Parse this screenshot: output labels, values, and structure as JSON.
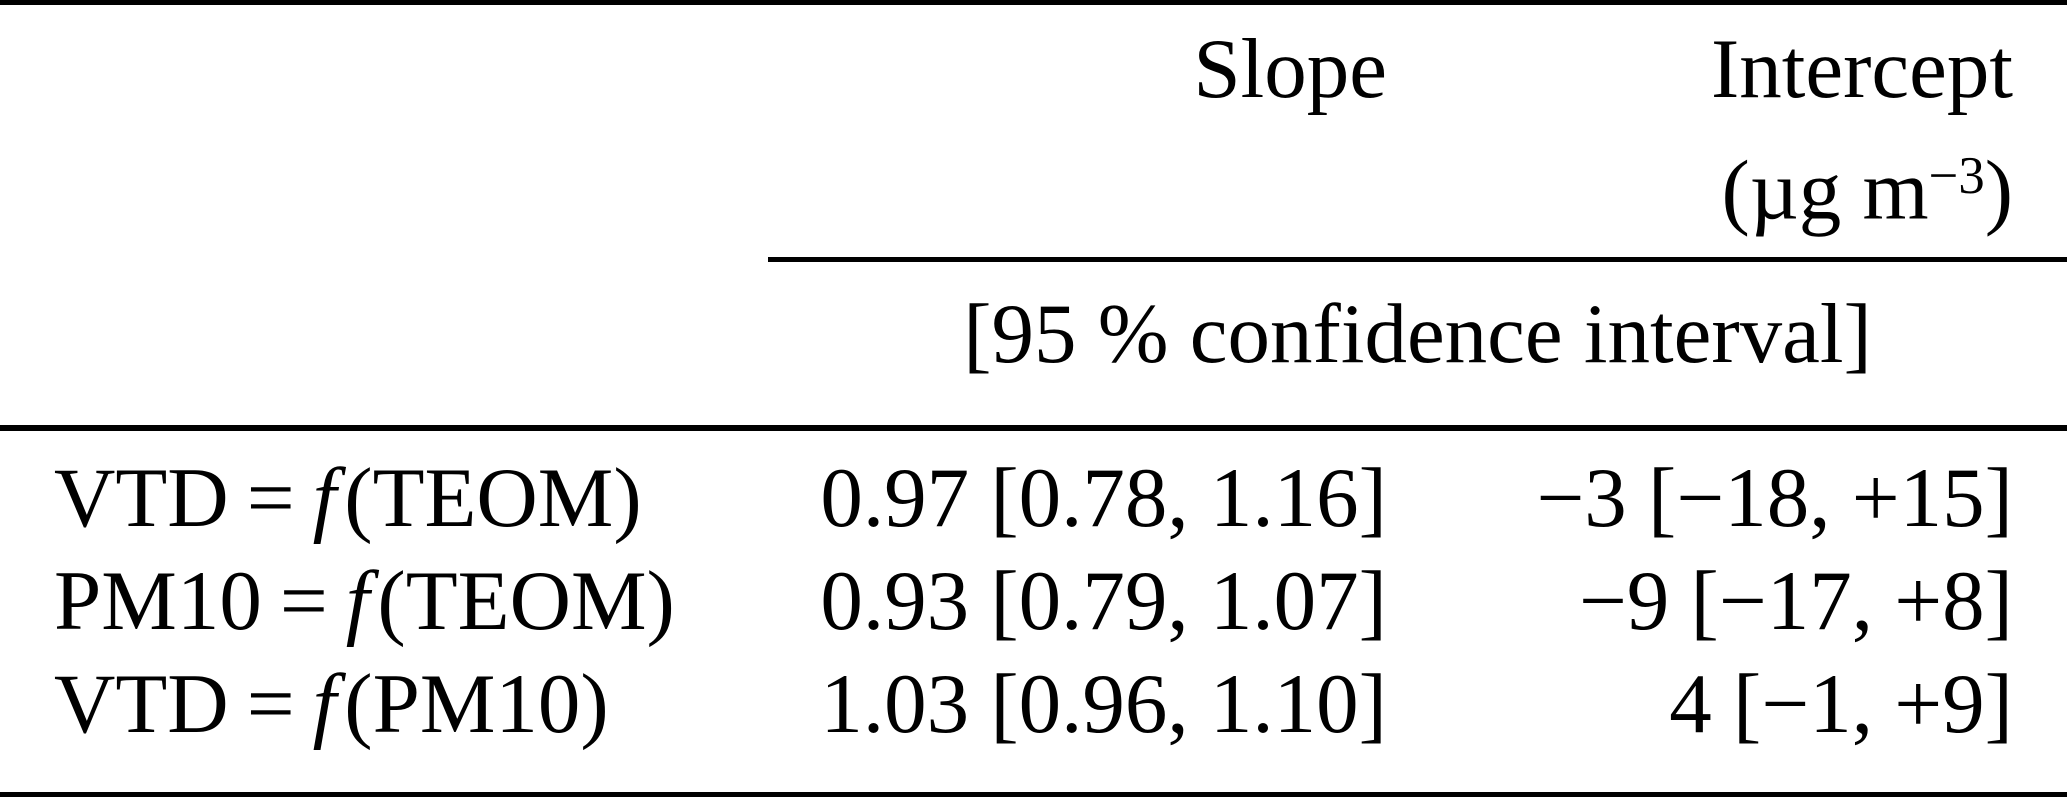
{
  "table": {
    "header": {
      "slope_label": "Slope",
      "intercept_label": "Intercept",
      "intercept_unit_open": "(µg m",
      "intercept_unit_sup": "−3",
      "intercept_unit_close": ")",
      "ci_note": "[95 % confidence interval]"
    },
    "symbols": {
      "equals": "=",
      "f": "f"
    },
    "rows": [
      {
        "lhs": "VTD",
        "arg": "(TEOM)",
        "slope": "0.97 [0.78, 1.16]",
        "intercept": "−3 [−18, +15]"
      },
      {
        "lhs": "PM10",
        "arg": "(TEOM)",
        "slope": "0.93 [0.79, 1.07]",
        "intercept": "−9 [−17, +8]"
      },
      {
        "lhs": "VTD",
        "arg": "(PM10)",
        "slope": "1.03 [0.96, 1.10]",
        "intercept": "4 [−1, +9]"
      }
    ]
  },
  "colors": {
    "background": "#ffffff",
    "text": "#000000",
    "rule": "#000000"
  }
}
